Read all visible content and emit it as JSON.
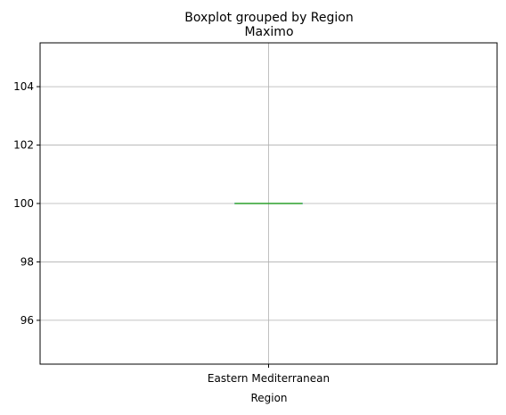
{
  "chart_data": {
    "type": "box",
    "suptitle": "Boxplot grouped by Region",
    "title": "Maximo",
    "xlabel": "Region",
    "ylabel": "",
    "categories": [
      "Eastern Mediterranean"
    ],
    "boxes": [
      {
        "category": "Eastern Mediterranean",
        "min": 100,
        "q1": 100,
        "median": 100,
        "q3": 100,
        "max": 100
      }
    ],
    "ylim": [
      94.5,
      105.5
    ],
    "yticks": [
      96,
      98,
      100,
      102,
      104
    ],
    "grid": true,
    "colors": {
      "box": "#1f77b4",
      "median": "#2ca02c",
      "grid": "#b0b0b0",
      "axes": "#000000"
    }
  }
}
